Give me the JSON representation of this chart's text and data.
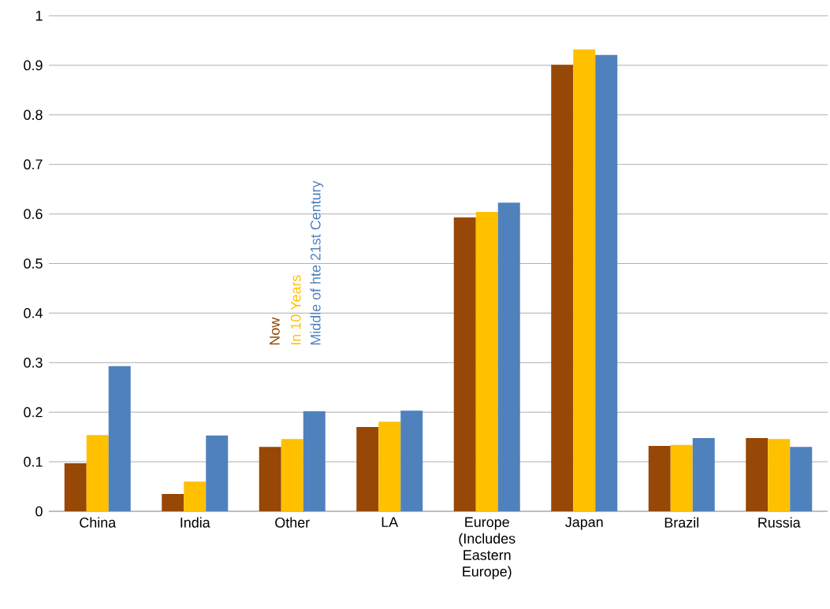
{
  "chart_data": {
    "type": "bar",
    "categories": [
      "China",
      "India",
      "Other",
      "LA",
      "Europe (Includes Eastern Europe)",
      "Japan",
      "Brazil",
      "Russia"
    ],
    "series": [
      {
        "name": "Now",
        "color": "#974706",
        "values": [
          0.097,
          0.035,
          0.13,
          0.17,
          0.593,
          0.901,
          0.132,
          0.148
        ]
      },
      {
        "name": "In 10 Years",
        "color": "#ffc000",
        "values": [
          0.154,
          0.06,
          0.146,
          0.181,
          0.604,
          0.932,
          0.134,
          0.146
        ]
      },
      {
        "name": "Middle of hte 21st Century",
        "color": "#4f81bd",
        "values": [
          0.293,
          0.153,
          0.202,
          0.203,
          0.623,
          0.921,
          0.148,
          0.13
        ]
      }
    ],
    "ylim": [
      0,
      1
    ],
    "yticks": [
      0,
      0.1,
      0.2,
      0.3,
      0.4,
      0.5,
      0.6,
      0.7,
      0.8,
      0.9,
      1
    ],
    "grid": "y",
    "legend": "center left"
  }
}
